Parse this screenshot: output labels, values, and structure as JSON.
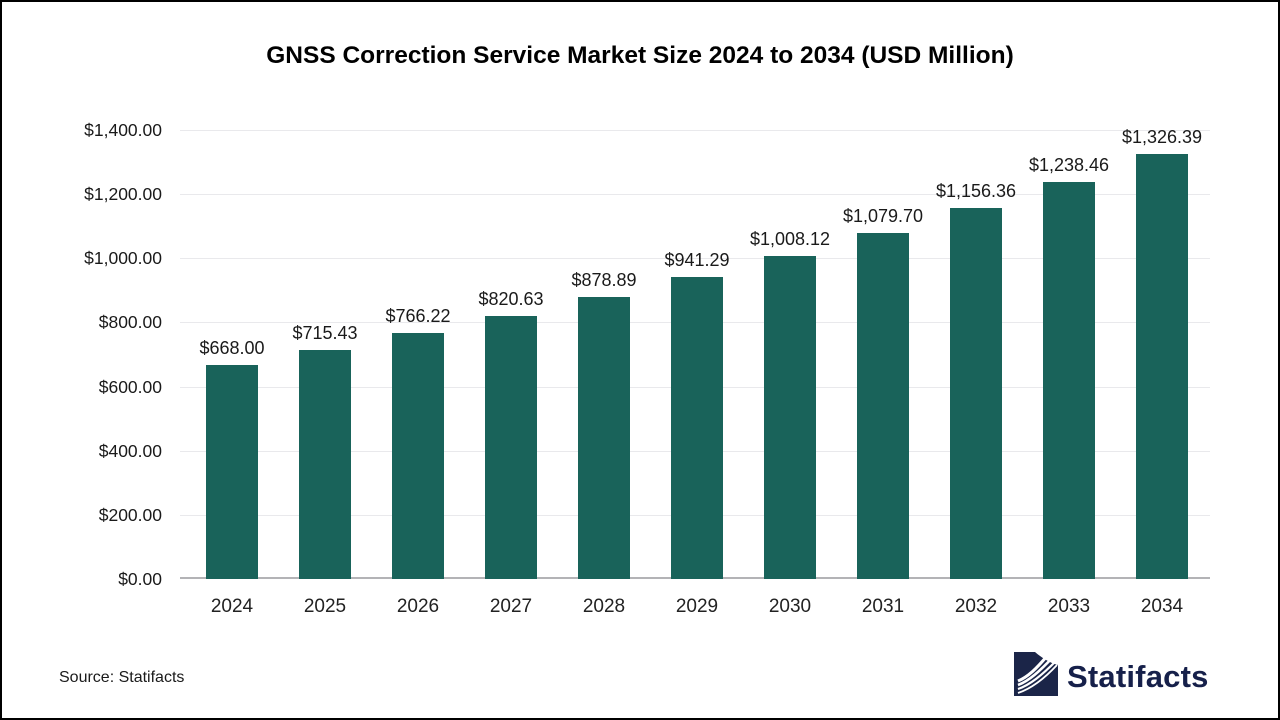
{
  "title": "GNSS Correction Service Market Size 2024 to 2034 (USD Million)",
  "source_note": "Source: Statifacts",
  "brand": {
    "name": "Statifacts",
    "icon": "statifacts-logo-icon"
  },
  "colors": {
    "bar": "#19635a",
    "gridline": "#e9e9ec",
    "axis_baseline": "#b3b3b6",
    "brand_navy": "#16204a",
    "logo_square": "#1b2548",
    "text": "#1a1a1a"
  },
  "chart_data": {
    "type": "bar",
    "title": "GNSS Correction Service Market Size 2024 to 2034 (USD Million)",
    "unit": "USD Million",
    "categories": [
      "2024",
      "2025",
      "2026",
      "2027",
      "2028",
      "2029",
      "2030",
      "2031",
      "2032",
      "2033",
      "2034"
    ],
    "values": [
      668.0,
      715.43,
      766.22,
      820.63,
      878.89,
      941.29,
      1008.12,
      1079.7,
      1156.36,
      1238.46,
      1326.39
    ],
    "bar_labels": [
      "$668.00",
      "$715.43",
      "$766.22",
      "$820.63",
      "$878.89",
      "$941.29",
      "$1,008.12",
      "$1,079.70",
      "$1,156.36",
      "$1,238.46",
      "$1,326.39"
    ],
    "y_ticks": [
      {
        "value": 0,
        "label": "$0.00"
      },
      {
        "value": 200,
        "label": "$200.00"
      },
      {
        "value": 400,
        "label": "$400.00"
      },
      {
        "value": 600,
        "label": "$600.00"
      },
      {
        "value": 800,
        "label": "$800.00"
      },
      {
        "value": 1000,
        "label": "$1,000.00"
      },
      {
        "value": 1200,
        "label": "$1,200.00"
      },
      {
        "value": 1400,
        "label": "$1,400.00"
      }
    ],
    "ylim": [
      0,
      1400
    ],
    "xlabel": "",
    "ylabel": "",
    "grid": true,
    "legend": false
  }
}
